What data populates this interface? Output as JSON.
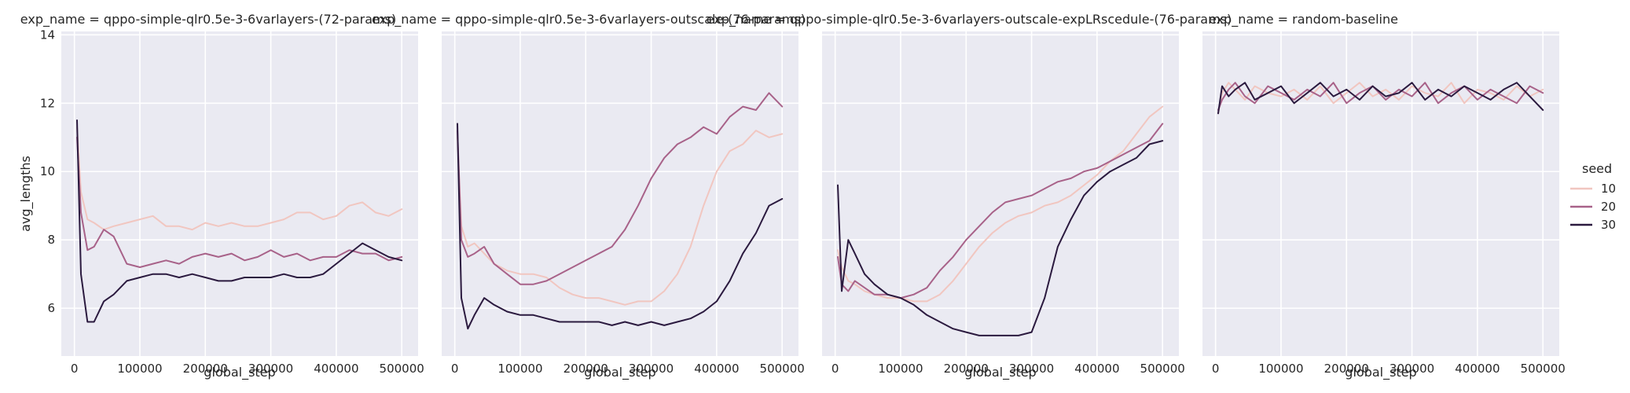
{
  "chart_data": {
    "type": "line",
    "ylabel": "avg_lengths",
    "xlabel": "global_step",
    "xlim": [
      -20000,
      525000
    ],
    "ylim": [
      4.6,
      14.1
    ],
    "xticks": [
      0,
      100000,
      200000,
      300000,
      400000,
      500000
    ],
    "xtick_labels": [
      "0",
      "100000",
      "200000",
      "300000",
      "400000",
      "500000"
    ],
    "yticks": [
      6,
      8,
      10,
      12,
      14
    ],
    "ytick_labels": [
      "6",
      "8",
      "10",
      "12",
      "14"
    ],
    "grid": true,
    "legend": {
      "title": "seed",
      "placement": "right",
      "entries": [
        {
          "label": "10",
          "color": "#f1c6c0"
        },
        {
          "label": "20",
          "color": "#a86289"
        },
        {
          "label": "30",
          "color": "#2b1a3f"
        }
      ]
    },
    "panels": [
      {
        "title": "exp_name = qppo-simple-qlr0.5e-3-6varlayers-(72-params)",
        "series": [
          {
            "name": "10",
            "x": [
              4000,
              10000,
              20000,
              30000,
              45000,
              60000,
              80000,
              100000,
              120000,
              140000,
              160000,
              180000,
              200000,
              220000,
              240000,
              260000,
              280000,
              300000,
              320000,
              340000,
              360000,
              380000,
              400000,
              420000,
              440000,
              460000,
              480000,
              500000
            ],
            "y": [
              11.3,
              9.4,
              8.6,
              8.5,
              8.3,
              8.4,
              8.5,
              8.6,
              8.7,
              8.4,
              8.4,
              8.3,
              8.5,
              8.4,
              8.5,
              8.4,
              8.4,
              8.5,
              8.6,
              8.8,
              8.8,
              8.6,
              8.7,
              9.0,
              9.1,
              8.8,
              8.7,
              8.9
            ]
          },
          {
            "name": "20",
            "x": [
              4000,
              10000,
              20000,
              30000,
              45000,
              60000,
              80000,
              100000,
              120000,
              140000,
              160000,
              180000,
              200000,
              220000,
              240000,
              260000,
              280000,
              300000,
              320000,
              340000,
              360000,
              380000,
              400000,
              420000,
              440000,
              460000,
              480000,
              500000
            ],
            "y": [
              11.0,
              8.8,
              7.7,
              7.8,
              8.3,
              8.1,
              7.3,
              7.2,
              7.3,
              7.4,
              7.3,
              7.5,
              7.6,
              7.5,
              7.6,
              7.4,
              7.5,
              7.7,
              7.5,
              7.6,
              7.4,
              7.5,
              7.5,
              7.7,
              7.6,
              7.6,
              7.4,
              7.5
            ]
          },
          {
            "name": "30",
            "x": [
              4000,
              10000,
              20000,
              30000,
              45000,
              60000,
              80000,
              100000,
              120000,
              140000,
              160000,
              180000,
              200000,
              220000,
              240000,
              260000,
              280000,
              300000,
              320000,
              340000,
              360000,
              380000,
              400000,
              420000,
              440000,
              460000,
              480000,
              500000
            ],
            "y": [
              11.5,
              7.0,
              5.6,
              5.6,
              6.2,
              6.4,
              6.8,
              6.9,
              7.0,
              7.0,
              6.9,
              7.0,
              6.9,
              6.8,
              6.8,
              6.9,
              6.9,
              6.9,
              7.0,
              6.9,
              6.9,
              7.0,
              7.3,
              7.6,
              7.9,
              7.7,
              7.5,
              7.4
            ]
          }
        ]
      },
      {
        "title": "exp_name = qppo-simple-qlr0.5e-3-6varlayers-outscale-(76-params)",
        "series": [
          {
            "name": "10",
            "x": [
              4000,
              10000,
              20000,
              30000,
              45000,
              60000,
              80000,
              100000,
              120000,
              140000,
              160000,
              180000,
              200000,
              220000,
              240000,
              260000,
              280000,
              300000,
              320000,
              340000,
              360000,
              380000,
              400000,
              420000,
              440000,
              460000,
              480000,
              500000
            ],
            "y": [
              11.0,
              8.4,
              7.8,
              7.9,
              7.6,
              7.3,
              7.1,
              7.0,
              7.0,
              6.9,
              6.6,
              6.4,
              6.3,
              6.3,
              6.2,
              6.1,
              6.2,
              6.2,
              6.5,
              7.0,
              7.8,
              9.0,
              10.0,
              10.6,
              10.8,
              11.2,
              11.0,
              11.1
            ]
          },
          {
            "name": "20",
            "x": [
              4000,
              10000,
              20000,
              30000,
              45000,
              60000,
              80000,
              100000,
              120000,
              140000,
              160000,
              180000,
              200000,
              220000,
              240000,
              260000,
              280000,
              300000,
              320000,
              340000,
              360000,
              380000,
              400000,
              420000,
              440000,
              460000,
              480000,
              500000
            ],
            "y": [
              11.2,
              8.0,
              7.5,
              7.6,
              7.8,
              7.3,
              7.0,
              6.7,
              6.7,
              6.8,
              7.0,
              7.2,
              7.4,
              7.6,
              7.8,
              8.3,
              9.0,
              9.8,
              10.4,
              10.8,
              11.0,
              11.3,
              11.1,
              11.6,
              11.9,
              11.8,
              12.3,
              11.9
            ]
          },
          {
            "name": "30",
            "x": [
              4000,
              10000,
              20000,
              30000,
              45000,
              60000,
              80000,
              100000,
              120000,
              140000,
              160000,
              180000,
              200000,
              220000,
              240000,
              260000,
              280000,
              300000,
              320000,
              340000,
              360000,
              380000,
              400000,
              420000,
              440000,
              460000,
              480000,
              500000
            ],
            "y": [
              11.4,
              6.3,
              5.4,
              5.8,
              6.3,
              6.1,
              5.9,
              5.8,
              5.8,
              5.7,
              5.6,
              5.6,
              5.6,
              5.6,
              5.5,
              5.6,
              5.5,
              5.6,
              5.5,
              5.6,
              5.7,
              5.9,
              6.2,
              6.8,
              7.6,
              8.2,
              9.0,
              9.2
            ]
          }
        ]
      },
      {
        "title": "exp_name = qppo-simple-qlr0.5e-3-6varlayers-outscale-expLRscedule-(76-params)",
        "series": [
          {
            "name": "10",
            "x": [
              4000,
              10000,
              20000,
              30000,
              45000,
              60000,
              80000,
              100000,
              120000,
              140000,
              160000,
              180000,
              200000,
              220000,
              240000,
              260000,
              280000,
              300000,
              320000,
              340000,
              360000,
              380000,
              400000,
              420000,
              440000,
              460000,
              480000,
              500000
            ],
            "y": [
              7.7,
              7.2,
              6.8,
              6.7,
              6.5,
              6.4,
              6.3,
              6.3,
              6.2,
              6.2,
              6.4,
              6.8,
              7.3,
              7.8,
              8.2,
              8.5,
              8.7,
              8.8,
              9.0,
              9.1,
              9.3,
              9.6,
              9.9,
              10.3,
              10.6,
              11.1,
              11.6,
              11.9
            ]
          },
          {
            "name": "20",
            "x": [
              4000,
              10000,
              20000,
              30000,
              45000,
              60000,
              80000,
              100000,
              120000,
              140000,
              160000,
              180000,
              200000,
              220000,
              240000,
              260000,
              280000,
              300000,
              320000,
              340000,
              360000,
              380000,
              400000,
              420000,
              440000,
              460000,
              480000,
              500000
            ],
            "y": [
              7.5,
              6.7,
              6.5,
              6.8,
              6.6,
              6.4,
              6.4,
              6.3,
              6.4,
              6.6,
              7.1,
              7.5,
              8.0,
              8.4,
              8.8,
              9.1,
              9.2,
              9.3,
              9.5,
              9.7,
              9.8,
              10.0,
              10.1,
              10.3,
              10.5,
              10.7,
              10.9,
              11.4
            ]
          },
          {
            "name": "30",
            "x": [
              4000,
              10000,
              20000,
              30000,
              45000,
              60000,
              80000,
              100000,
              120000,
              140000,
              160000,
              180000,
              200000,
              220000,
              240000,
              260000,
              280000,
              300000,
              320000,
              340000,
              360000,
              380000,
              400000,
              420000,
              440000,
              460000,
              480000,
              500000
            ],
            "y": [
              9.6,
              6.5,
              8.0,
              7.6,
              7.0,
              6.7,
              6.4,
              6.3,
              6.1,
              5.8,
              5.6,
              5.4,
              5.3,
              5.2,
              5.2,
              5.2,
              5.2,
              5.3,
              6.3,
              7.8,
              8.6,
              9.3,
              9.7,
              10.0,
              10.2,
              10.4,
              10.8,
              10.9
            ]
          }
        ]
      },
      {
        "title": "exp_name = random-baseline",
        "series": [
          {
            "name": "10",
            "x": [
              4000,
              10000,
              20000,
              30000,
              45000,
              60000,
              80000,
              100000,
              120000,
              140000,
              160000,
              180000,
              200000,
              220000,
              240000,
              260000,
              280000,
              300000,
              320000,
              340000,
              360000,
              380000,
              400000,
              420000,
              440000,
              460000,
              480000,
              500000
            ],
            "y": [
              11.7,
              12.3,
              12.6,
              12.4,
              12.1,
              12.5,
              12.3,
              12.2,
              12.4,
              12.1,
              12.5,
              12.0,
              12.3,
              12.6,
              12.2,
              12.4,
              12.1,
              12.5,
              12.3,
              12.2,
              12.6,
              12.0,
              12.4,
              12.3,
              12.1,
              12.5,
              12.2,
              12.4
            ]
          },
          {
            "name": "20",
            "x": [
              4000,
              10000,
              20000,
              30000,
              45000,
              60000,
              80000,
              100000,
              120000,
              140000,
              160000,
              180000,
              200000,
              220000,
              240000,
              260000,
              280000,
              300000,
              320000,
              340000,
              360000,
              380000,
              400000,
              420000,
              440000,
              460000,
              480000,
              500000
            ],
            "y": [
              11.8,
              12.1,
              12.4,
              12.6,
              12.2,
              12.0,
              12.5,
              12.3,
              12.1,
              12.4,
              12.2,
              12.6,
              12.0,
              12.3,
              12.5,
              12.1,
              12.4,
              12.2,
              12.6,
              12.0,
              12.3,
              12.5,
              12.1,
              12.4,
              12.2,
              12.0,
              12.5,
              12.3
            ]
          },
          {
            "name": "30",
            "x": [
              4000,
              10000,
              20000,
              30000,
              45000,
              60000,
              80000,
              100000,
              120000,
              140000,
              160000,
              180000,
              200000,
              220000,
              240000,
              260000,
              280000,
              300000,
              320000,
              340000,
              360000,
              380000,
              400000,
              420000,
              440000,
              460000,
              480000,
              500000
            ],
            "y": [
              11.7,
              12.5,
              12.2,
              12.4,
              12.6,
              12.1,
              12.3,
              12.5,
              12.0,
              12.3,
              12.6,
              12.2,
              12.4,
              12.1,
              12.5,
              12.2,
              12.3,
              12.6,
              12.1,
              12.4,
              12.2,
              12.5,
              12.3,
              12.1,
              12.4,
              12.6,
              12.2,
              11.8
            ]
          }
        ]
      }
    ]
  }
}
